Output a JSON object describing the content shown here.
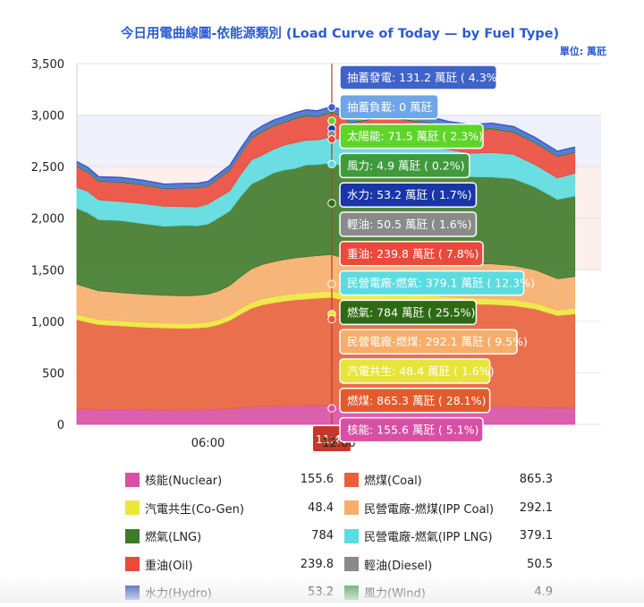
{
  "chart_data": {
    "type": "area",
    "stacked": true,
    "title": "今日用電曲線圖-依能源類別 (Load Curve of Today — by Fuel Type)",
    "unit_label": "單位: 萬瓩",
    "ylim": [
      0,
      3500
    ],
    "yticks": [
      0,
      500,
      1000,
      1500,
      2000,
      2500,
      3000,
      3500
    ],
    "ytick_labels": [
      "0",
      "500",
      "1,000",
      "1,500",
      "2,000",
      "2,500",
      "3,000",
      "3,500"
    ],
    "xlim": [
      0,
      24
    ],
    "x_labels": [
      {
        "hour": 6,
        "text": "06:00"
      },
      {
        "hour": 12,
        "text": "12:00"
      }
    ],
    "crosshair": {
      "hour": 11.67,
      "text": "11:40"
    },
    "x_end_hour": 22.8,
    "x": [
      0,
      0.5,
      1,
      2,
      3,
      4,
      5,
      5.5,
      6,
      6.5,
      7,
      7.5,
      8,
      8.5,
      9,
      9.5,
      10,
      10.5,
      11,
      11.67,
      12,
      12.5,
      13,
      14,
      15,
      15.5,
      16,
      16.5,
      17,
      18,
      19,
      20,
      21,
      22,
      22.8
    ],
    "totals": [
      2540,
      2480,
      2420,
      2390,
      2360,
      2340,
      2330,
      2340,
      2360,
      2420,
      2520,
      2680,
      2820,
      2900,
      2950,
      2990,
      3020,
      3040,
      3060,
      3080,
      3040,
      3000,
      3000,
      3010,
      3020,
      3000,
      2980,
      2960,
      2940,
      2920,
      2910,
      2880,
      2800,
      2640,
      2680
    ],
    "series": [
      {
        "name": "核能(Nuclear)",
        "value": 155.6,
        "pct": "5.1%",
        "color": "#d84fa5",
        "shares": [
          0.06
        ]
      },
      {
        "name": "燃煤(Coal)",
        "value": 865.3,
        "pct": "28.1%",
        "color": "#e8603a",
        "shares": [
          0.34
        ]
      },
      {
        "name": "汽電共生(Co-Gen)",
        "value": 48.4,
        "pct": "1.6%",
        "color": "#ece83a",
        "shares": [
          0.02
        ]
      },
      {
        "name": "民營電廠-燃煤(IPP Coal)",
        "value": 292.1,
        "pct": "9.5%",
        "color": "#f6ae6a",
        "shares": [
          0.115
        ]
      },
      {
        "name": "燃氣(LNG)",
        "value": 784,
        "pct": "25.5%",
        "color": "#3f7a2b",
        "shares": [
          0.29
        ]
      },
      {
        "name": "民營電廠-燃氣(IPP LNG)",
        "value": 379.1,
        "pct": "12.3%",
        "color": "#5bdce0",
        "shares": [
          0.08
        ]
      },
      {
        "name": "重油(Oil)",
        "value": 239.8,
        "pct": "7.8%",
        "color": "#ea4a3b",
        "shares": [
          0.075
        ]
      },
      {
        "name": "輕油(Diesel)",
        "value": 50.5,
        "pct": "1.6%",
        "color": "#8a8a8a",
        "shares": [
          0.002
        ]
      },
      {
        "name": "水力(Hydro)",
        "value": 53.2,
        "pct": "1.7%",
        "color": "#1f3fb0",
        "shares": [
          0.002
        ]
      },
      {
        "name": "風力(Wind)",
        "value": 4.9,
        "pct": "0.2%",
        "color": "#3f9a3c",
        "shares": [
          0.001
        ]
      },
      {
        "name": "太陽能",
        "value": 71.5,
        "pct": "2.3%",
        "color": "#5fd42a",
        "shares": [
          0.002
        ]
      },
      {
        "name": "抽蓄負載",
        "value": 0,
        "pct": "",
        "color": "#6fa6e8",
        "shares": [
          0.0
        ]
      },
      {
        "name": "抽蓄發電",
        "value": 131.2,
        "pct": "4.3%",
        "color": "#4b6fd6",
        "shares": [
          0.013
        ]
      }
    ],
    "tooltips": [
      {
        "label": "抽蓄發電",
        "value": 131.2,
        "pct": "4.3%",
        "color": "#3f63c8",
        "text": "抽蓄發電: 131.2 萬瓩 ( 4.3%)"
      },
      {
        "label": "抽蓄負載",
        "value": 0,
        "pct": "",
        "color": "#6fa6e8",
        "text": "抽蓄負載: 0 萬瓩"
      },
      {
        "label": "太陽能",
        "value": 71.5,
        "pct": "2.3%",
        "color": "#5fd42a",
        "text": "太陽能: 71.5 萬瓩 ( 2.3%)"
      },
      {
        "label": "風力",
        "value": 4.9,
        "pct": "0.2%",
        "color": "#3f9a3c",
        "text": "風力: 4.9 萬瓩 ( 0.2%)"
      },
      {
        "label": "水力",
        "value": 53.2,
        "pct": "1.7%",
        "color": "#1a35a8",
        "text": "水力: 53.2 萬瓩 ( 1.7%)"
      },
      {
        "label": "輕油",
        "value": 50.5,
        "pct": "1.6%",
        "color": "#8a8a8a",
        "text": "輕油: 50.5 萬瓩 ( 1.6%)"
      },
      {
        "label": "重油",
        "value": 239.8,
        "pct": "7.8%",
        "color": "#ea4a3b",
        "text": "重油: 239.8 萬瓩 ( 7.8%)"
      },
      {
        "label": "民營電廠-燃氣",
        "value": 379.1,
        "pct": "12.3%",
        "color": "#5bdce0",
        "text": "民營電廠-燃氣: 379.1 萬瓩 ( 12.3%)"
      },
      {
        "label": "燃氣",
        "value": 784,
        "pct": "25.5%",
        "color": "#2e6a14",
        "text": "燃氣: 784 萬瓩 ( 25.5%)"
      },
      {
        "label": "民營電廠-燃煤",
        "value": 292.1,
        "pct": "9.5%",
        "color": "#f6ae6a",
        "text": "民營電廠-燃煤: 292.1 萬瓩 ( 9.5%)"
      },
      {
        "label": "汽電共生",
        "value": 48.4,
        "pct": "1.6%",
        "color": "#e8e43a",
        "text": "汽電共生: 48.4 萬瓩 ( 1.6%)"
      },
      {
        "label": "燃煤",
        "value": 865.3,
        "pct": "28.1%",
        "color": "#e35a2c",
        "text": "燃煤: 865.3 萬瓩 ( 28.1%)"
      },
      {
        "label": "核能",
        "value": 155.6,
        "pct": "5.1%",
        "color": "#d84fa5",
        "text": "核能: 155.6 萬瓩 ( 5.1%)"
      }
    ],
    "bands": [
      {
        "from": 2000,
        "to": 3000,
        "color": "#eef0fb"
      },
      {
        "from": 1500,
        "to": 2500,
        "color": "#fcefec"
      }
    ]
  },
  "legend": [
    [
      {
        "name": "核能(Nuclear)",
        "value": "155.6",
        "color": "#d84fa5"
      },
      {
        "name": "燃煤(Coal)",
        "value": "865.3",
        "color": "#e8603a"
      }
    ],
    [
      {
        "name": "汽電共生(Co-Gen)",
        "value": "48.4",
        "color": "#ece83a"
      },
      {
        "name": "民營電廠-燃煤(IPP Coal)",
        "value": "292.1",
        "color": "#f6ae6a"
      }
    ],
    [
      {
        "name": "燃氣(LNG)",
        "value": "784",
        "color": "#3f7a2b"
      },
      {
        "name": "民營電廠-燃氣(IPP LNG)",
        "value": "379.1",
        "color": "#5bdce0"
      }
    ],
    [
      {
        "name": "重油(Oil)",
        "value": "239.8",
        "color": "#ea4a3b"
      },
      {
        "name": "輕油(Diesel)",
        "value": "50.5",
        "color": "#8a8a8a"
      }
    ],
    [
      {
        "name": "水力(Hydro)",
        "value": "53.2",
        "color": "#1f3fb0"
      },
      {
        "name": "風力(Wind)",
        "value": "4.9",
        "color": "#3f9a3c"
      }
    ]
  ]
}
